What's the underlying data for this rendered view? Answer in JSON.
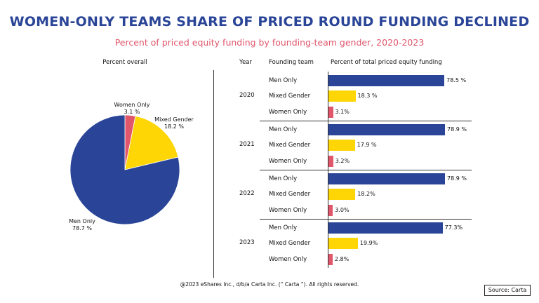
{
  "header": {
    "title": "WOMEN-ONLY TEAMS SHARE OF PRICED ROUND FUNDING DECLINED",
    "subtitle": "Percent of priced  equity funding by founding-team gender, 2020-2023"
  },
  "colors": {
    "title": "#2a4597",
    "subtitle": "#e0566b",
    "men_only": "#2a4597",
    "mixed_gender": "#fed505",
    "women_only": "#e0566b"
  },
  "pie": {
    "heading": "Percent overall",
    "slices": [
      {
        "name": "Women Only",
        "value": 3.1,
        "label_name": "Women Only",
        "label_value": "3.1 %",
        "color": "#e0566b"
      },
      {
        "name": "Mixed Gender",
        "value": 18.2,
        "label_name": "Mixed Gender",
        "label_value": "18.2 %",
        "color": "#fed505"
      },
      {
        "name": "Men Only",
        "value": 78.7,
        "label_name": "Men Only",
        "label_value": "78.7 %",
        "color": "#2a4597"
      }
    ]
  },
  "table": {
    "col_year": "Year",
    "col_team": "Founding team",
    "col_percent": "Percent of total priced equity funding"
  },
  "chart_data": [
    {
      "type": "pie",
      "title": "Percent overall",
      "categories": [
        "Women Only",
        "Mixed Gender",
        "Men Only"
      ],
      "values": [
        3.1,
        18.2,
        78.7
      ]
    },
    {
      "type": "bar",
      "orientation": "horizontal",
      "title": "Percent of total priced equity funding",
      "xlim": [
        0,
        80
      ],
      "groups": [
        {
          "year": "2020",
          "rows": [
            {
              "team": "Men Only",
              "value": 78.5,
              "label": "78.5 %"
            },
            {
              "team": "Mixed Gender",
              "value": 18.3,
              "label": "18.3 %"
            },
            {
              "team": "Women Only",
              "value": 3.1,
              "label": "3.1%"
            }
          ]
        },
        {
          "year": "2021",
          "rows": [
            {
              "team": "Men Only",
              "value": 78.9,
              "label": "78.9 %"
            },
            {
              "team": "Mixed Gender",
              "value": 17.9,
              "label": "17.9 %"
            },
            {
              "team": "Women Only",
              "value": 3.2,
              "label": "3.2%"
            }
          ]
        },
        {
          "year": "2022",
          "rows": [
            {
              "team": "Men Only",
              "value": 78.9,
              "label": "78.9 %"
            },
            {
              "team": "Mixed Gender",
              "value": 18.2,
              "label": "18.2%"
            },
            {
              "team": "Women Only",
              "value": 3.0,
              "label": "3.0%"
            }
          ]
        },
        {
          "year": "2023",
          "rows": [
            {
              "team": "Men Only",
              "value": 77.3,
              "label": "77.3%"
            },
            {
              "team": "Mixed Gender",
              "value": 19.9,
              "label": "19.9%"
            },
            {
              "team": "Women Only",
              "value": 2.8,
              "label": "2.8%"
            }
          ]
        }
      ]
    }
  ],
  "footer": {
    "copyright": "@2023 eShares Inc., d/b/a Carta Inc. (“ Carta ”). All rights reserved.",
    "source": "Source: Carta"
  }
}
